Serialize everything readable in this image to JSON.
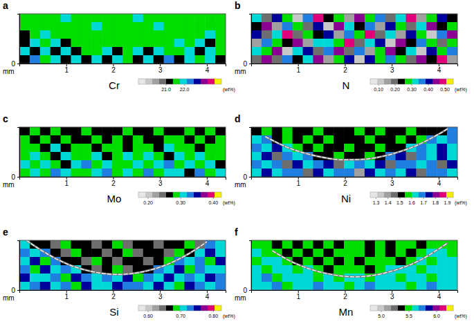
{
  "chart_data": [
    {
      "type": "heatmap",
      "label": "a",
      "title": "Cr",
      "xlabel": "mm",
      "xlim": [
        0,
        4.4
      ],
      "xticks": [
        1,
        2,
        3,
        4
      ],
      "ylim": [
        0,
        1.05
      ],
      "yticks": [
        0
      ],
      "cells": [
        [
          21.6,
          21.7,
          21.5,
          21.6,
          21.8,
          21.6,
          21.7,
          21.6,
          21.5,
          21.7,
          21.6,
          21.8,
          21.6,
          21.7,
          21.5,
          21.6,
          21.7,
          21.6,
          21.5,
          21.6
        ],
        [
          21.5,
          21.7,
          21.6,
          21.4,
          21.6,
          21.7,
          21.6,
          21.8,
          21.6,
          21.5,
          21.7,
          21.6,
          21.6,
          21.8,
          21.6,
          21.5,
          21.6,
          21.7,
          21.6,
          21.4
        ],
        [
          21.3,
          21.6,
          21.8,
          21.5,
          21.7,
          21.6,
          21.4,
          21.6,
          21.7,
          21.6,
          21.6,
          21.5,
          21.7,
          21.6,
          21.6,
          21.7,
          21.5,
          21.6,
          21.8,
          21.5
        ],
        [
          21.2,
          21.8,
          21.4,
          21.9,
          21.3,
          21.6,
          21.7,
          21.5,
          21.6,
          21.4,
          21.7,
          21.6,
          21.5,
          21.7,
          21.6,
          21.8,
          21.4,
          21.9,
          21.3,
          21.6
        ],
        [
          21.9,
          21.0,
          22.1,
          21.3,
          21.8,
          21.1,
          21.7,
          21.5,
          21.9,
          21.2,
          21.6,
          21.8,
          21.1,
          22.0,
          21.4,
          21.7,
          22.1,
          21.2,
          21.8,
          21.5
        ],
        [
          21.1,
          22.2,
          21.4,
          21.9,
          21.0,
          22.0,
          21.3,
          21.8,
          21.2,
          22.1,
          21.5,
          21.0,
          21.9,
          21.3,
          22.2,
          21.1,
          21.8,
          21.4,
          22.0,
          21.2
        ]
      ],
      "colorbar": {
        "range": [
          19.5,
          24.0
        ],
        "ticks": [
          {
            "value": 21,
            "label": "21.0"
          },
          {
            "value": 22,
            "label": "22.0"
          }
        ],
        "label": "(wt%)",
        "colors": [
          "#e6e6e6",
          "#c8c8c8",
          "#a0a0a0",
          "#6e6e6e",
          "#000000",
          "#00dd00",
          "#00d8d8",
          "#1f7fe0",
          "#00009a",
          "#8a0090",
          "#e0007a",
          "#f4f000"
        ]
      }
    },
    {
      "type": "heatmap",
      "label": "b",
      "title": "N",
      "xlabel": "mm",
      "xlim": [
        0,
        4.4
      ],
      "xticks": [
        1,
        2,
        3,
        4
      ],
      "ylim": [
        0,
        1.05
      ],
      "yticks": [
        0
      ],
      "cells": [
        [
          0.32,
          0.18,
          0.41,
          0.27,
          0.12,
          0.36,
          0.48,
          0.22,
          0.3,
          0.15,
          0.44,
          0.26,
          0.38,
          0.2,
          0.33,
          0.47,
          0.14,
          0.29,
          0.4,
          0.24
        ],
        [
          0.25,
          0.43,
          0.16,
          0.35,
          0.29,
          0.21,
          0.39,
          0.13,
          0.46,
          0.31,
          0.23,
          0.37,
          0.17,
          0.42,
          0.28,
          0.19,
          0.34,
          0.45,
          0.22,
          0.3
        ],
        [
          0.4,
          0.2,
          0.33,
          0.47,
          0.18,
          0.3,
          0.25,
          0.42,
          0.14,
          0.36,
          0.28,
          0.49,
          0.21,
          0.32,
          0.16,
          0.39,
          0.27,
          0.13,
          0.35,
          0.44
        ],
        [
          0.15,
          0.37,
          0.28,
          0.22,
          0.44,
          0.17,
          0.34,
          0.31,
          0.26,
          0.48,
          0.19,
          0.33,
          0.4,
          0.12,
          0.45,
          0.24,
          0.38,
          0.3,
          0.18,
          0.27
        ],
        [
          0.34,
          0.26,
          0.45,
          0.13,
          0.31,
          0.4,
          0.19,
          0.36,
          0.43,
          0.21,
          0.35,
          0.14,
          0.29,
          0.46,
          0.23,
          0.32,
          0.11,
          0.41,
          0.28,
          0.37
        ],
        [
          0.21,
          0.46,
          0.19,
          0.38,
          0.25,
          0.33,
          0.44,
          0.16,
          0.29,
          0.39,
          0.12,
          0.42,
          0.27,
          0.35,
          0.3,
          0.18,
          0.43,
          0.24,
          0.47,
          0.15
        ]
      ],
      "colorbar": {
        "range": [
          0.05,
          0.55
        ],
        "ticks": [
          {
            "value": 0.1,
            "label": "0.10"
          },
          {
            "value": 0.2,
            "label": "0.20"
          },
          {
            "value": 0.3,
            "label": "0.30"
          },
          {
            "value": 0.4,
            "label": "0.40"
          },
          {
            "value": 0.5,
            "label": "0.50"
          }
        ],
        "label": "(wt%)",
        "colors": [
          "#e6e6e6",
          "#c8c8c8",
          "#a0a0a0",
          "#6e6e6e",
          "#000000",
          "#00dd00",
          "#00d8d8",
          "#1f7fe0",
          "#00009a",
          "#8a0090",
          "#e0007a",
          "#f4f000"
        ]
      }
    },
    {
      "type": "heatmap",
      "label": "c",
      "title": "Mo",
      "xlabel": "mm",
      "xlim": [
        0,
        4.4
      ],
      "xticks": [
        1,
        2,
        3,
        4
      ],
      "ylim": [
        0,
        1.05
      ],
      "yticks": [
        0
      ],
      "cells": [
        [
          0.27,
          0.28,
          0.26,
          0.29,
          0.27,
          0.26,
          0.28,
          0.27,
          0.26,
          0.27,
          0.29,
          0.26,
          0.27,
          0.28,
          0.26,
          0.27,
          0.28,
          0.26,
          0.29,
          0.27
        ],
        [
          0.28,
          0.26,
          0.29,
          0.27,
          0.28,
          0.27,
          0.26,
          0.28,
          0.27,
          0.29,
          0.26,
          0.28,
          0.27,
          0.26,
          0.28,
          0.29,
          0.27,
          0.28,
          0.26,
          0.28
        ],
        [
          0.29,
          0.28,
          0.27,
          0.3,
          0.26,
          0.29,
          0.28,
          0.27,
          0.29,
          0.28,
          0.27,
          0.29,
          0.28,
          0.27,
          0.3,
          0.28,
          0.29,
          0.27,
          0.28,
          0.29
        ],
        [
          0.28,
          0.3,
          0.29,
          0.27,
          0.31,
          0.28,
          0.29,
          0.3,
          0.27,
          0.29,
          0.31,
          0.28,
          0.3,
          0.29,
          0.27,
          0.3,
          0.28,
          0.31,
          0.29,
          0.28
        ],
        [
          0.3,
          0.28,
          0.31,
          0.29,
          0.27,
          0.3,
          0.32,
          0.28,
          0.3,
          0.29,
          0.28,
          0.31,
          0.29,
          0.3,
          0.32,
          0.28,
          0.3,
          0.29,
          0.31,
          0.27
        ],
        [
          0.29,
          0.31,
          0.28,
          0.32,
          0.3,
          0.28,
          0.29,
          0.31,
          0.33,
          0.28,
          0.3,
          0.29,
          0.32,
          0.28,
          0.31,
          0.3,
          0.27,
          0.32,
          0.29,
          0.3
        ]
      ],
      "colorbar": {
        "range": [
          0.17,
          0.425
        ],
        "ticks": [
          {
            "value": 0.2,
            "label": "0.20"
          },
          {
            "value": 0.3,
            "label": "0.30"
          },
          {
            "value": 0.4,
            "label": "0.40"
          }
        ],
        "label": "(wt%)",
        "colors": [
          "#e6e6e6",
          "#c8c8c8",
          "#a0a0a0",
          "#6e6e6e",
          "#000000",
          "#00dd00",
          "#00d8d8",
          "#1f7fe0",
          "#00009a",
          "#8a0090",
          "#e0007a",
          "#f4f000"
        ]
      }
    },
    {
      "type": "heatmap",
      "label": "d",
      "title": "Ni",
      "xlabel": "mm",
      "xlim": [
        0,
        4.4
      ],
      "xticks": [
        1,
        2,
        3,
        4
      ],
      "ylim": [
        0,
        1.05
      ],
      "yticks": [
        0
      ],
      "cells": [
        [
          1.52,
          1.55,
          1.5,
          1.57,
          1.53,
          1.49,
          1.56,
          1.51,
          1.54,
          1.5,
          1.57,
          1.52,
          1.55,
          1.49,
          1.53,
          1.56,
          1.51,
          1.54,
          1.5,
          1.66
        ],
        [
          1.64,
          1.7,
          1.53,
          1.56,
          1.5,
          1.55,
          1.52,
          1.57,
          1.49,
          1.54,
          1.51,
          1.56,
          1.53,
          1.5,
          1.55,
          1.52,
          1.57,
          1.68,
          1.62,
          1.71
        ],
        [
          1.67,
          1.61,
          1.72,
          1.63,
          1.55,
          1.51,
          1.56,
          1.5,
          1.53,
          1.57,
          1.52,
          1.49,
          1.55,
          1.51,
          1.54,
          1.65,
          1.7,
          1.6,
          1.73,
          1.64
        ],
        [
          1.62,
          1.74,
          1.46,
          1.69,
          1.63,
          1.71,
          1.54,
          1.51,
          1.56,
          1.5,
          1.53,
          1.55,
          1.52,
          1.66,
          1.72,
          1.45,
          1.68,
          1.63,
          1.75,
          1.6
        ],
        [
          1.7,
          1.63,
          1.68,
          1.44,
          1.73,
          1.61,
          1.66,
          1.76,
          1.47,
          1.64,
          1.7,
          1.62,
          1.74,
          1.43,
          1.67,
          1.71,
          1.61,
          1.69,
          1.46,
          1.72
        ],
        [
          1.65,
          1.72,
          1.61,
          1.69,
          1.66,
          1.45,
          1.73,
          1.63,
          1.7,
          1.67,
          1.42,
          1.75,
          1.64,
          1.68,
          1.62,
          1.74,
          1.48,
          1.66,
          1.71,
          1.63
        ]
      ],
      "boundary": {
        "x": [
          0.3,
          0.8,
          1.3,
          1.8,
          2.1,
          2.5,
          3.0,
          3.5,
          4.0,
          4.2
        ],
        "y": [
          0.85,
          0.61,
          0.46,
          0.37,
          0.36,
          0.38,
          0.48,
          0.65,
          0.9,
          1.02
        ]
      },
      "colorbar": {
        "range": [
          1.25,
          1.95
        ],
        "ticks": [
          1.3,
          1.4,
          1.5,
          1.6,
          1.7,
          1.8,
          1.9
        ],
        "label": "(wt%)",
        "colors": [
          "#e6e6e6",
          "#c8c8c8",
          "#a0a0a0",
          "#6e6e6e",
          "#000000",
          "#00dd00",
          "#00d8d8",
          "#1f7fe0",
          "#00009a",
          "#8a0090",
          "#e0007a",
          "#f4f000"
        ]
      }
    },
    {
      "type": "heatmap",
      "label": "e",
      "title": "Si",
      "xlabel": "mm",
      "xlim": [
        0,
        4.4
      ],
      "xticks": [
        1,
        2,
        3,
        4
      ],
      "ylim": [
        0,
        1.05
      ],
      "yticks": [
        0
      ],
      "cells": [
        [
          0.71,
          0.66,
          0.67,
          0.65,
          0.68,
          0.66,
          0.67,
          0.64,
          0.66,
          0.68,
          0.65,
          0.67,
          0.66,
          0.64,
          0.67,
          0.66,
          0.68,
          0.65,
          0.72,
          0.7
        ],
        [
          0.73,
          0.7,
          0.72,
          0.67,
          0.65,
          0.68,
          0.66,
          0.67,
          0.65,
          0.66,
          0.68,
          0.64,
          0.67,
          0.66,
          0.65,
          0.68,
          0.66,
          0.71,
          0.74,
          0.7
        ],
        [
          0.7,
          0.74,
          0.69,
          0.72,
          0.66,
          0.67,
          0.65,
          0.68,
          0.66,
          0.64,
          0.67,
          0.66,
          0.65,
          0.67,
          0.68,
          0.73,
          0.7,
          0.72,
          0.69,
          0.75
        ],
        [
          0.72,
          0.69,
          0.75,
          0.7,
          0.73,
          0.71,
          0.67,
          0.65,
          0.66,
          0.68,
          0.64,
          0.66,
          0.67,
          0.72,
          0.7,
          0.74,
          0.69,
          0.73,
          0.71,
          0.7
        ],
        [
          0.74,
          0.71,
          0.7,
          0.73,
          0.69,
          0.75,
          0.72,
          0.7,
          0.73,
          0.71,
          0.74,
          0.69,
          0.72,
          0.7,
          0.75,
          0.71,
          0.73,
          0.7,
          0.74,
          0.72
        ],
        [
          0.71,
          0.73,
          0.76,
          0.7,
          0.72,
          0.69,
          0.74,
          0.71,
          0.7,
          0.75,
          0.72,
          0.73,
          0.7,
          0.74,
          0.71,
          0.69,
          0.75,
          0.72,
          0.7,
          0.73
        ]
      ],
      "boundary": {
        "x": [
          0.15,
          0.6,
          1.1,
          1.6,
          2.1,
          2.6,
          3.1,
          3.6,
          4.0
        ],
        "y": [
          1.05,
          0.76,
          0.52,
          0.38,
          0.33,
          0.38,
          0.52,
          0.76,
          1.02
        ]
      },
      "colorbar": {
        "range": [
          0.57,
          0.825
        ],
        "ticks": [
          {
            "value": 0.6,
            "label": "0.60"
          },
          {
            "value": 0.7,
            "label": "0.70"
          },
          {
            "value": 0.8,
            "label": "0.80"
          }
        ],
        "label": "(wt%)",
        "colors": [
          "#e6e6e6",
          "#c8c8c8",
          "#a0a0a0",
          "#6e6e6e",
          "#000000",
          "#00dd00",
          "#00d8d8",
          "#1f7fe0",
          "#00009a",
          "#8a0090",
          "#e0007a",
          "#f4f000"
        ]
      }
    },
    {
      "type": "heatmap",
      "label": "f",
      "title": "Mn",
      "xlabel": "mm",
      "xlim": [
        0,
        4.4
      ],
      "xticks": [
        1,
        2,
        3,
        4
      ],
      "ylim": [
        0,
        1.05
      ],
      "yticks": [
        0
      ],
      "cells": [
        [
          5.48,
          5.45,
          5.4,
          5.5,
          5.38,
          5.46,
          5.42,
          5.51,
          5.39,
          5.47,
          5.44,
          5.36,
          5.49,
          5.41,
          5.45,
          5.52,
          5.4,
          5.47,
          5.43,
          5.5
        ],
        [
          5.58,
          5.52,
          5.44,
          5.38,
          5.49,
          5.41,
          5.46,
          5.37,
          5.48,
          5.43,
          5.5,
          5.4,
          5.45,
          5.39,
          5.47,
          5.42,
          5.51,
          5.56,
          5.6,
          5.53
        ],
        [
          5.5,
          5.62,
          5.55,
          5.47,
          5.42,
          5.48,
          5.39,
          5.45,
          5.41,
          5.5,
          5.37,
          5.46,
          5.43,
          5.49,
          5.4,
          5.54,
          5.59,
          5.51,
          5.63,
          5.57
        ],
        [
          5.61,
          5.53,
          5.66,
          5.57,
          5.52,
          5.59,
          5.46,
          5.41,
          5.48,
          5.43,
          5.47,
          5.4,
          5.5,
          5.58,
          5.55,
          5.64,
          5.52,
          5.6,
          5.56,
          5.65
        ],
        [
          5.55,
          5.68,
          5.51,
          5.62,
          5.58,
          5.64,
          5.53,
          5.6,
          5.49,
          5.57,
          5.63,
          5.52,
          5.59,
          5.66,
          5.54,
          5.61,
          5.67,
          5.5,
          5.62,
          5.57
        ],
        [
          5.63,
          5.56,
          5.7,
          5.54,
          5.66,
          5.59,
          5.72,
          5.58,
          5.64,
          5.52,
          5.61,
          5.69,
          5.55,
          5.6,
          5.67,
          5.53,
          5.62,
          5.71,
          5.57,
          5.65
        ]
      ],
      "boundary": {
        "x": [
          0.45,
          0.9,
          1.4,
          1.9,
          2.2,
          2.6,
          3.1,
          3.6,
          4.2
        ],
        "y": [
          0.83,
          0.58,
          0.4,
          0.3,
          0.28,
          0.31,
          0.43,
          0.63,
          1.0
        ]
      },
      "colorbar": {
        "range": [
          4.8,
          6.3
        ],
        "ticks": [
          {
            "value": 5,
            "label": "5.0"
          },
          5.5,
          {
            "value": 6,
            "label": "6.0"
          }
        ],
        "label": "(wt%)",
        "colors": [
          "#e6e6e6",
          "#c8c8c8",
          "#a0a0a0",
          "#6e6e6e",
          "#000000",
          "#00dd00",
          "#00d8d8",
          "#1f7fe0",
          "#00009a",
          "#8a0090",
          "#e0007a",
          "#f4f000"
        ]
      }
    }
  ]
}
